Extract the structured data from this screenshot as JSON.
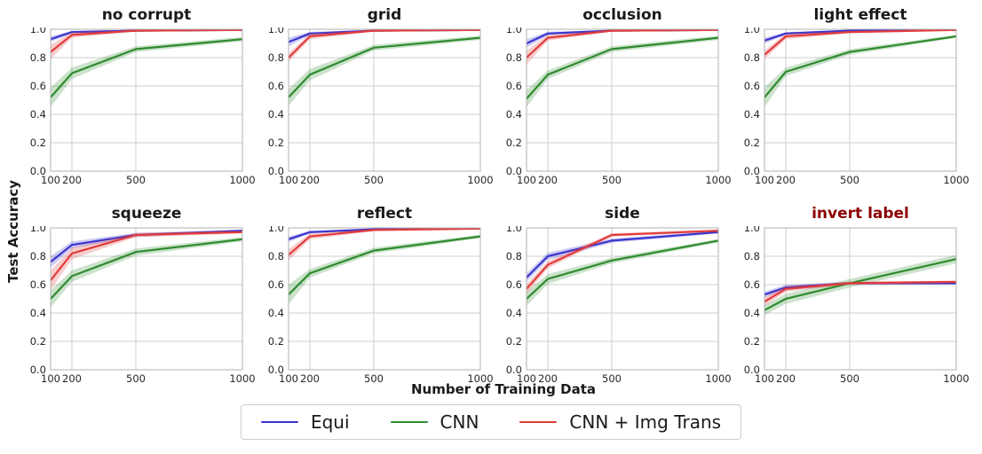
{
  "figure": {
    "background": "#ffffff",
    "grid_color": "#cccccc",
    "spine_color": "#b0b0b0",
    "tick_color": "#262626",
    "default_title_color": "#1a1a1a",
    "highlight_title_color": "#8b0000"
  },
  "chart_data": {
    "type": "line",
    "layout": "2x4-grid",
    "x": [
      100,
      200,
      500,
      1000
    ],
    "xlim": [
      100,
      1000
    ],
    "ylim": [
      0.0,
      1.0
    ],
    "xticks": [
      100,
      200,
      500,
      1000
    ],
    "yticks": [
      0.0,
      0.2,
      0.4,
      0.6,
      0.8,
      1.0
    ],
    "xlabel": "Number of Training Data",
    "ylabel": "Test Accuracy",
    "grid": true,
    "legend_position": "bottom-center",
    "band_opacity": 0.25,
    "series_names": [
      "Equi",
      "CNN",
      "CNN + Img Trans"
    ],
    "series_colors": [
      "#3a35cf",
      "#2e8b2e",
      "#e23b3b"
    ],
    "subplots": [
      {
        "title": "no corrupt",
        "title_color": "#1a1a1a",
        "series": [
          {
            "name": "Equi",
            "values": [
              0.93,
              0.98,
              0.99,
              0.995
            ],
            "band": [
              0.02,
              0.01,
              0.006,
              0.004
            ]
          },
          {
            "name": "CNN",
            "values": [
              0.52,
              0.69,
              0.86,
              0.93
            ],
            "band": [
              0.07,
              0.04,
              0.02,
              0.015
            ]
          },
          {
            "name": "CNN + Img Trans",
            "values": [
              0.84,
              0.96,
              0.99,
              0.995
            ],
            "band": [
              0.05,
              0.02,
              0.006,
              0.004
            ]
          }
        ]
      },
      {
        "title": "grid",
        "title_color": "#1a1a1a",
        "series": [
          {
            "name": "Equi",
            "values": [
              0.91,
              0.97,
              0.99,
              0.995
            ],
            "band": [
              0.03,
              0.012,
              0.006,
              0.004
            ]
          },
          {
            "name": "CNN",
            "values": [
              0.52,
              0.68,
              0.87,
              0.94
            ],
            "band": [
              0.06,
              0.04,
              0.02,
              0.015
            ]
          },
          {
            "name": "CNN + Img Trans",
            "values": [
              0.8,
              0.95,
              0.99,
              0.995
            ],
            "band": [
              0.03,
              0.02,
              0.006,
              0.004
            ]
          }
        ]
      },
      {
        "title": "occlusion",
        "title_color": "#1a1a1a",
        "series": [
          {
            "name": "Equi",
            "values": [
              0.9,
              0.97,
              0.99,
              0.995
            ],
            "band": [
              0.03,
              0.012,
              0.006,
              0.004
            ]
          },
          {
            "name": "CNN",
            "values": [
              0.51,
              0.68,
              0.86,
              0.94
            ],
            "band": [
              0.06,
              0.03,
              0.02,
              0.015
            ]
          },
          {
            "name": "CNN + Img Trans",
            "values": [
              0.8,
              0.94,
              0.99,
              0.995
            ],
            "band": [
              0.05,
              0.02,
              0.006,
              0.004
            ]
          }
        ]
      },
      {
        "title": "light effect",
        "title_color": "#1a1a1a",
        "series": [
          {
            "name": "Equi",
            "values": [
              0.92,
              0.97,
              0.99,
              0.995
            ],
            "band": [
              0.02,
              0.01,
              0.006,
              0.004
            ]
          },
          {
            "name": "CNN",
            "values": [
              0.52,
              0.7,
              0.84,
              0.95
            ],
            "band": [
              0.07,
              0.03,
              0.02,
              0.01
            ]
          },
          {
            "name": "CNN + Img Trans",
            "values": [
              0.82,
              0.95,
              0.98,
              0.995
            ],
            "band": [
              0.03,
              0.02,
              0.008,
              0.004
            ]
          }
        ]
      },
      {
        "title": "squeeze",
        "title_color": "#1a1a1a",
        "series": [
          {
            "name": "Equi",
            "values": [
              0.76,
              0.88,
              0.95,
              0.98
            ],
            "band": [
              0.04,
              0.025,
              0.015,
              0.008
            ]
          },
          {
            "name": "CNN",
            "values": [
              0.5,
              0.66,
              0.83,
              0.92
            ],
            "band": [
              0.06,
              0.04,
              0.025,
              0.015
            ]
          },
          {
            "name": "CNN + Img Trans",
            "values": [
              0.63,
              0.82,
              0.95,
              0.97
            ],
            "band": [
              0.07,
              0.04,
              0.015,
              0.01
            ]
          }
        ]
      },
      {
        "title": "reflect",
        "title_color": "#1a1a1a",
        "series": [
          {
            "name": "Equi",
            "values": [
              0.92,
              0.97,
              0.99,
              0.995
            ],
            "band": [
              0.02,
              0.01,
              0.006,
              0.004
            ]
          },
          {
            "name": "CNN",
            "values": [
              0.53,
              0.68,
              0.84,
              0.94
            ],
            "band": [
              0.07,
              0.03,
              0.02,
              0.012
            ]
          },
          {
            "name": "CNN + Img Trans",
            "values": [
              0.81,
              0.94,
              0.985,
              0.995
            ],
            "band": [
              0.04,
              0.02,
              0.008,
              0.004
            ]
          }
        ]
      },
      {
        "title": "side",
        "title_color": "#1a1a1a",
        "series": [
          {
            "name": "Equi",
            "values": [
              0.65,
              0.8,
              0.91,
              0.97
            ],
            "band": [
              0.03,
              0.025,
              0.015,
              0.01
            ]
          },
          {
            "name": "CNN",
            "values": [
              0.5,
              0.64,
              0.77,
              0.91
            ],
            "band": [
              0.05,
              0.035,
              0.02,
              0.012
            ]
          },
          {
            "name": "CNN + Img Trans",
            "values": [
              0.57,
              0.74,
              0.95,
              0.98
            ],
            "band": [
              0.035,
              0.025,
              0.012,
              0.008
            ]
          }
        ]
      },
      {
        "title": "invert label",
        "title_color": "#8b0000",
        "series": [
          {
            "name": "Equi",
            "values": [
              0.53,
              0.58,
              0.61,
              0.61
            ],
            "band": [
              0.02,
              0.02,
              0.01,
              0.008
            ]
          },
          {
            "name": "CNN",
            "values": [
              0.42,
              0.5,
              0.61,
              0.78
            ],
            "band": [
              0.035,
              0.035,
              0.03,
              0.03
            ]
          },
          {
            "name": "CNN + Img Trans",
            "values": [
              0.48,
              0.57,
              0.61,
              0.62
            ],
            "band": [
              0.03,
              0.02,
              0.01,
              0.008
            ]
          }
        ]
      }
    ]
  }
}
